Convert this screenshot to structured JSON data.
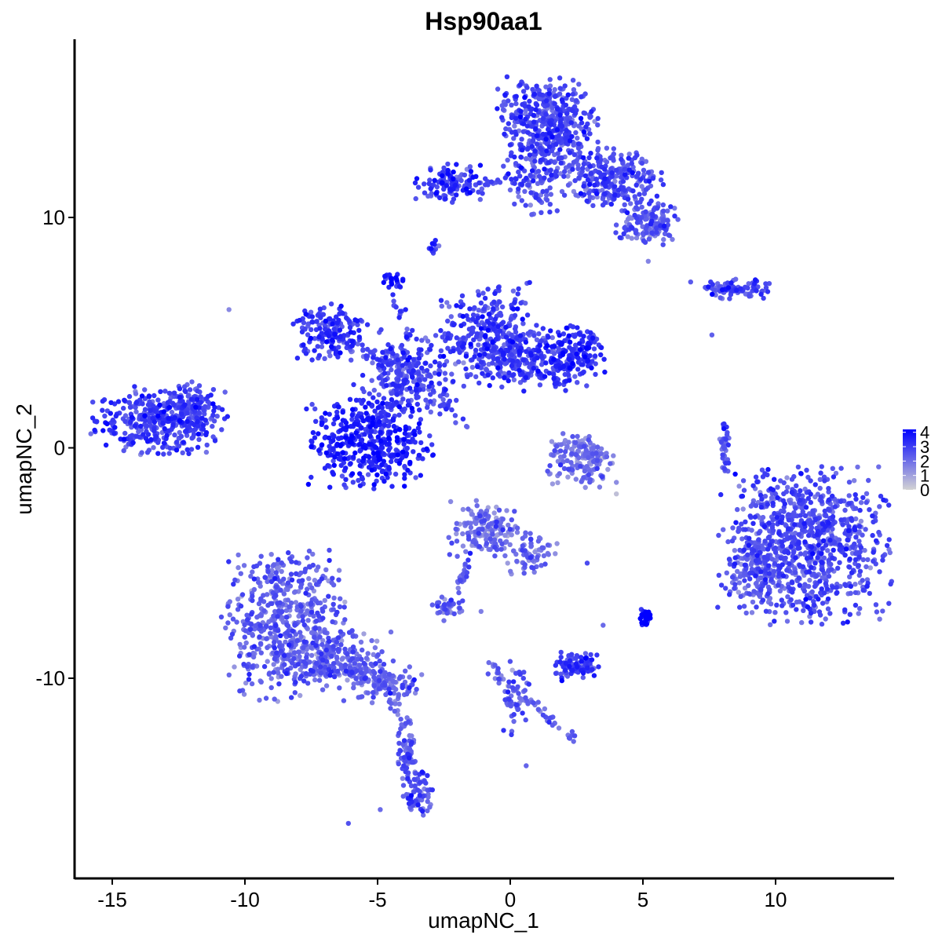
{
  "chart_data": {
    "type": "scatter",
    "title": "Hsp90aa1",
    "xlabel": "umapNC_1",
    "ylabel": "umapNC_2",
    "xlim": [
      -16.5,
      14.5
    ],
    "ylim": [
      -18.5,
      17.8
    ],
    "x_ticks": [
      -15,
      -10,
      -5,
      0,
      5,
      10
    ],
    "x_tick_labels": [
      "-15",
      "-10",
      "-5",
      "0",
      "5",
      "10"
    ],
    "y_ticks": [
      -10,
      0,
      10
    ],
    "y_tick_labels": [
      "-10",
      "0",
      "10"
    ],
    "grid": false,
    "legend": {
      "position": "right",
      "type": "colorbar",
      "min": 0,
      "max": 4.2,
      "ticks": [
        0,
        1,
        2,
        3,
        4
      ],
      "tick_labels": [
        "0",
        "1",
        "2",
        "3",
        "4"
      ],
      "low_color": "#d3d3d3",
      "high_color": "#0000ff"
    },
    "clusters": [
      {
        "cx": -13.2,
        "cy": 1.2,
        "sx": 1.2,
        "sy": 0.7,
        "n": 380,
        "mean": 2.9
      },
      {
        "cx": -12.0,
        "cy": 1.8,
        "sx": 0.5,
        "sy": 0.5,
        "n": 80,
        "mean": 2.6
      },
      {
        "cx": -8.5,
        "cy": -7.5,
        "sx": 1.1,
        "sy": 1.6,
        "n": 520,
        "mean": 2.2
      },
      {
        "cx": -6.5,
        "cy": -9.2,
        "sx": 1.0,
        "sy": 0.6,
        "n": 180,
        "mean": 2.1
      },
      {
        "cx": -4.6,
        "cy": -10.2,
        "sx": 0.6,
        "sy": 0.4,
        "n": 90,
        "mean": 2.2
      },
      {
        "cx": -3.9,
        "cy": -13.3,
        "sx": 0.2,
        "sy": 1.0,
        "n": 50,
        "mean": 2.4
      },
      {
        "cx": -3.5,
        "cy": -15.0,
        "sx": 0.3,
        "sy": 0.5,
        "n": 60,
        "mean": 2.6
      },
      {
        "cx": -5.3,
        "cy": 0.2,
        "sx": 1.1,
        "sy": 0.9,
        "n": 420,
        "mean": 3.4
      },
      {
        "cx": -6.8,
        "cy": 5.0,
        "sx": 0.7,
        "sy": 0.6,
        "n": 160,
        "mean": 3.0
      },
      {
        "cx": -3.8,
        "cy": 3.2,
        "sx": 1.0,
        "sy": 0.9,
        "n": 220,
        "mean": 2.7
      },
      {
        "cx": -0.9,
        "cy": 5.0,
        "sx": 0.8,
        "sy": 1.0,
        "n": 260,
        "mean": 2.8
      },
      {
        "cx": 0.5,
        "cy": 4.0,
        "sx": 1.0,
        "sy": 0.7,
        "n": 240,
        "mean": 2.9
      },
      {
        "cx": 2.3,
        "cy": 4.0,
        "sx": 0.6,
        "sy": 0.6,
        "n": 180,
        "mean": 3.1
      },
      {
        "cx": -4.4,
        "cy": 7.3,
        "sx": 0.2,
        "sy": 0.2,
        "n": 20,
        "mean": 3.8
      },
      {
        "cx": 1.4,
        "cy": 14.0,
        "sx": 0.9,
        "sy": 1.0,
        "n": 460,
        "mean": 2.7
      },
      {
        "cx": 3.8,
        "cy": 11.7,
        "sx": 0.9,
        "sy": 0.6,
        "n": 260,
        "mean": 2.6
      },
      {
        "cx": 5.2,
        "cy": 9.8,
        "sx": 0.6,
        "sy": 0.5,
        "n": 140,
        "mean": 2.3
      },
      {
        "cx": -2.3,
        "cy": 11.5,
        "sx": 0.6,
        "sy": 0.4,
        "n": 110,
        "mean": 3.0
      },
      {
        "cx": 1.0,
        "cy": 11.5,
        "sx": 0.6,
        "sy": 0.8,
        "n": 90,
        "mean": 2.5
      },
      {
        "cx": 11.1,
        "cy": -4.2,
        "sx": 1.5,
        "sy": 1.6,
        "n": 900,
        "mean": 2.6
      },
      {
        "cx": 9.2,
        "cy": -5.5,
        "sx": 0.5,
        "sy": 0.8,
        "n": 120,
        "mean": 2.2
      },
      {
        "cx": -1.0,
        "cy": -3.6,
        "sx": 0.6,
        "sy": 0.6,
        "n": 160,
        "mean": 1.9
      },
      {
        "cx": 0.8,
        "cy": -4.5,
        "sx": 0.5,
        "sy": 0.5,
        "n": 70,
        "mean": 2.0
      },
      {
        "cx": -2.3,
        "cy": -6.9,
        "sx": 0.3,
        "sy": 0.2,
        "n": 40,
        "mean": 2.0
      },
      {
        "cx": 2.5,
        "cy": -9.5,
        "sx": 0.4,
        "sy": 0.3,
        "n": 100,
        "mean": 2.9
      },
      {
        "cx": 2.6,
        "cy": -0.5,
        "sx": 0.6,
        "sy": 0.6,
        "n": 160,
        "mean": 1.9
      },
      {
        "cx": 8.5,
        "cy": 6.9,
        "sx": 0.6,
        "sy": 0.2,
        "n": 90,
        "mean": 2.7
      },
      {
        "cx": 5.1,
        "cy": -7.4,
        "sx": 0.1,
        "sy": 0.2,
        "n": 30,
        "mean": 4.0
      },
      {
        "cx": 8.1,
        "cy": -0.2,
        "sx": 0.1,
        "sy": 0.7,
        "n": 35,
        "mean": 2.4
      },
      {
        "cx": -2.9,
        "cy": 8.6,
        "sx": 0.1,
        "sy": 0.2,
        "n": 10,
        "mean": 3.0
      },
      {
        "cx": 0.2,
        "cy": -10.8,
        "sx": 0.3,
        "sy": 0.9,
        "n": 40,
        "mean": 2.4
      }
    ],
    "links": [
      {
        "from": [
          -4.4,
          7.3
        ],
        "to": [
          -3.8,
          3.2
        ],
        "n": 30,
        "mean": 2.9
      },
      {
        "from": [
          -3.8,
          3.2
        ],
        "to": [
          -1.5,
          0.8
        ],
        "n": 25,
        "mean": 2.6
      },
      {
        "from": [
          -6.8,
          5.0
        ],
        "to": [
          -3.8,
          3.2
        ],
        "n": 40,
        "mean": 2.7
      },
      {
        "from": [
          -5.3,
          0.2
        ],
        "to": [
          -3.8,
          3.2
        ],
        "n": 40,
        "mean": 2.8
      },
      {
        "from": [
          -2.3,
          11.5
        ],
        "to": [
          1.0,
          11.5
        ],
        "n": 40,
        "mean": 2.8
      },
      {
        "from": [
          -9.0,
          -9.0
        ],
        "to": [
          -4.6,
          -10.2
        ],
        "n": 60,
        "mean": 2.3
      },
      {
        "from": [
          -4.6,
          -10.2
        ],
        "to": [
          -3.5,
          -15.0
        ],
        "n": 45,
        "mean": 2.1
      },
      {
        "from": [
          -1.5,
          -4.5
        ],
        "to": [
          -2.3,
          -6.9
        ],
        "n": 25,
        "mean": 2.2
      },
      {
        "from": [
          0.2,
          -10.5
        ],
        "to": [
          2.4,
          -12.6
        ],
        "n": 35,
        "mean": 2.2
      },
      {
        "from": [
          -0.7,
          -9.3
        ],
        "to": [
          0.2,
          -11.5
        ],
        "n": 25,
        "mean": 2.2
      }
    ],
    "points": [
      [
        -10.6,
        6.0,
        1.5
      ],
      [
        4.0,
        -2.0,
        0.4
      ],
      [
        6.8,
        7.2,
        2.4
      ],
      [
        -1.1,
        -7.1,
        1.7
      ],
      [
        -2.5,
        -7.5,
        2.0
      ],
      [
        0.6,
        -13.8,
        2.2
      ],
      [
        2.9,
        -5.0,
        2.7
      ],
      [
        -6.1,
        -16.3,
        2.6
      ],
      [
        -4.9,
        -15.7,
        2.1
      ],
      [
        7.6,
        4.9,
        2.3
      ],
      [
        3.5,
        -7.7,
        2.1
      ],
      [
        5.0,
        9.3,
        2.4
      ],
      [
        5.2,
        8.1,
        1.6
      ],
      [
        4.0,
        -1.5,
        1.4
      ]
    ]
  }
}
